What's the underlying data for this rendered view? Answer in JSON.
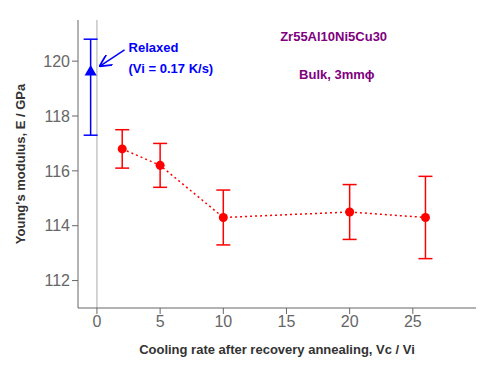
{
  "chart_data": {
    "type": "scatter",
    "xlabel": "Cooling rate after recovery annealing, Vc / Vi",
    "ylabel": "Young's modulus, E / GPa",
    "xlim": [
      -1.5,
      30
    ],
    "ylim": [
      111,
      121.5
    ],
    "xticks": [
      0,
      5,
      10,
      15,
      20,
      25
    ],
    "yticks": [
      112,
      114,
      116,
      118,
      120
    ],
    "grid": false,
    "series": [
      {
        "color": "#FF0000",
        "marker": "circle",
        "line_style": "dotted",
        "x": [
          2,
          5,
          10,
          20,
          26
        ],
        "values": [
          116.8,
          116.2,
          114.3,
          114.5,
          114.3
        ],
        "yerr": [
          0.7,
          0.8,
          1.0,
          1.0,
          1.5
        ]
      },
      {
        "color": "#0000FF",
        "marker": "triangle",
        "x": [
          -0.5
        ],
        "values": [
          119.6
        ],
        "yerr_lo": [
          2.3
        ],
        "yerr_hi": [
          1.2
        ]
      }
    ],
    "reference_lines": [
      {
        "x": 0,
        "color": "#AAAAAA"
      }
    ],
    "annotations": [
      {
        "text": "Relaxed",
        "x": 2.5,
        "y": 120.7,
        "color": "#0000FF",
        "arrow": true
      },
      {
        "text": "(Vi = 0.17 K/s)",
        "x": 2.5,
        "y": 119.9,
        "color": "#0000FF"
      },
      {
        "text": "Zr55Al10Ni5Cu30",
        "x": 14.5,
        "y": 121.1,
        "color": "#800080"
      },
      {
        "text": "Bulk, 3mmϕ",
        "x": 16.0,
        "y": 119.7,
        "color": "#800080"
      }
    ]
  }
}
